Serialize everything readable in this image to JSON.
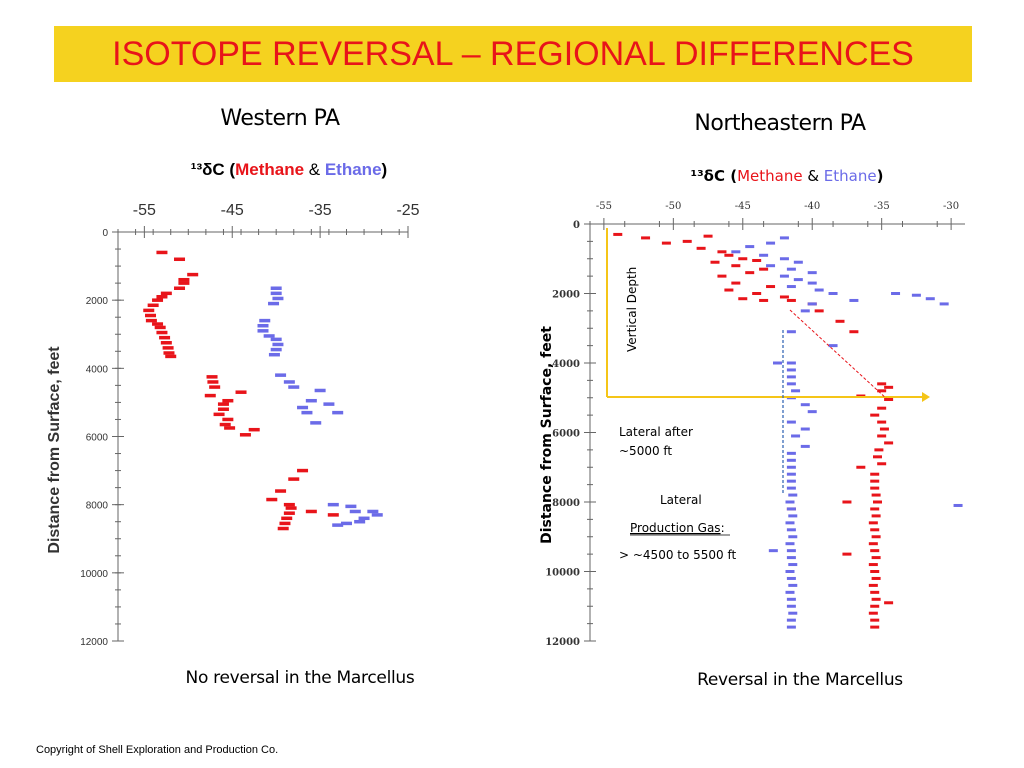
{
  "title": "ISOTOPE REVERSAL – REGIONAL DIFFERENCES",
  "copyright": "Copyright of Shell Exploration and Production Co.",
  "colors": {
    "methane": "#e8141a",
    "ethane": "#6b6be8",
    "title_bar": "#f5d21f",
    "ne_ethane_shallow": "#3c78c8"
  },
  "chart_data": [
    {
      "type": "scatter",
      "region": "Western PA",
      "subtitle": {
        "prefix": "¹³δC (",
        "methane": "Methane",
        "amp": " & ",
        "ethane": "Ethane",
        "suffix": ")"
      },
      "ylabel": "Distance from Surface, feet",
      "caption": "No reversal in the Marcellus",
      "xlim": [
        -58,
        -25
      ],
      "ylim": [
        0,
        12000
      ],
      "x_ticks": [
        "-55",
        "-45",
        "-35",
        "-25"
      ],
      "y_ticks": [
        "0",
        "2000",
        "4000",
        "6000",
        "8000",
        "10000",
        "12000"
      ],
      "series": [
        {
          "name": "Methane",
          "points": [
            [
              -53,
              600
            ],
            [
              -51,
              800
            ],
            [
              -49.5,
              1250
            ],
            [
              -50.5,
              1400
            ],
            [
              -50.5,
              1500
            ],
            [
              -51,
              1650
            ],
            [
              -52.5,
              1800
            ],
            [
              -53,
              1900
            ],
            [
              -53.5,
              2000
            ],
            [
              -54,
              2150
            ],
            [
              -54.5,
              2300
            ],
            [
              -54.3,
              2450
            ],
            [
              -54.2,
              2600
            ],
            [
              -53.5,
              2700
            ],
            [
              -53.2,
              2800
            ],
            [
              -53,
              2950
            ],
            [
              -52.7,
              3100
            ],
            [
              -52.5,
              3250
            ],
            [
              -52.3,
              3400
            ],
            [
              -52.2,
              3550
            ],
            [
              -52,
              3650
            ],
            [
              -47.3,
              4250
            ],
            [
              -47.2,
              4400
            ],
            [
              -47,
              4550
            ],
            [
              -44,
              4700
            ],
            [
              -47.5,
              4800
            ],
            [
              -45.5,
              4950
            ],
            [
              -46,
              5050
            ],
            [
              -46,
              5200
            ],
            [
              -46.5,
              5350
            ],
            [
              -45.5,
              5500
            ],
            [
              -45.8,
              5650
            ],
            [
              -45.3,
              5750
            ],
            [
              -42.5,
              5800
            ],
            [
              -43.5,
              5950
            ],
            [
              -37,
              7000
            ],
            [
              -38,
              7250
            ],
            [
              -39.5,
              7600
            ],
            [
              -40.5,
              7850
            ],
            [
              -38.5,
              8000
            ],
            [
              -38.3,
              8100
            ],
            [
              -38.5,
              8250
            ],
            [
              -38.8,
              8400
            ],
            [
              -39,
              8550
            ],
            [
              -39.2,
              8700
            ],
            [
              -36,
              8200
            ],
            [
              -33.5,
              8300
            ]
          ]
        },
        {
          "name": "Ethane",
          "points": [
            [
              -40,
              1650
            ],
            [
              -40,
              1800
            ],
            [
              -39.8,
              1950
            ],
            [
              -40.3,
              2100
            ],
            [
              -41.3,
              2600
            ],
            [
              -41.5,
              2750
            ],
            [
              -41.5,
              2900
            ],
            [
              -40.8,
              3050
            ],
            [
              -40,
              3150
            ],
            [
              -39.8,
              3300
            ],
            [
              -40,
              3450
            ],
            [
              -40.2,
              3600
            ],
            [
              -39.5,
              4200
            ],
            [
              -38.5,
              4400
            ],
            [
              -38,
              4550
            ],
            [
              -35,
              4650
            ],
            [
              -36,
              4950
            ],
            [
              -34,
              5050
            ],
            [
              -37,
              5150
            ],
            [
              -36.5,
              5300
            ],
            [
              -33,
              5300
            ],
            [
              -35.5,
              5600
            ],
            [
              -33.5,
              8000
            ],
            [
              -31.5,
              8050
            ],
            [
              -29,
              8200
            ],
            [
              -31,
              8200
            ],
            [
              -28.5,
              8300
            ],
            [
              -30,
              8400
            ],
            [
              -30.5,
              8500
            ],
            [
              -32,
              8550
            ],
            [
              -33,
              8600
            ]
          ]
        }
      ]
    },
    {
      "type": "scatter",
      "region": "Northeastern PA",
      "subtitle": {
        "prefix": "¹³δC (",
        "methane": "Methane",
        "amp": " & ",
        "ethane": "Ethane",
        "suffix": ")"
      },
      "ylabel": "Distance from Surface, feet",
      "caption": "Reversal in the Marcellus",
      "xlim": [
        -56,
        -29
      ],
      "ylim": [
        0,
        12000
      ],
      "x_ticks": [
        "-55",
        "-50",
        "-45",
        "-40",
        "-35",
        "-30"
      ],
      "y_ticks": [
        "0",
        "2000",
        "4000",
        "6000",
        "8000",
        "10000",
        "12000"
      ],
      "annotations": {
        "vertical_depth": "Vertical Depth",
        "lateral_after_line1": "Lateral after",
        "lateral_after_line2": "~5000 ft",
        "lateral_line1": "Lateral",
        "lateral_line2": "Production Gas",
        "lateral_colon": ":",
        "lateral_line3": "> ~4500 to  5500 ft"
      },
      "series": [
        {
          "name": "Methane",
          "points": [
            [
              -54,
              300
            ],
            [
              -52,
              400
            ],
            [
              -50.5,
              550
            ],
            [
              -49,
              500
            ],
            [
              -47.5,
              350
            ],
            [
              -48,
              700
            ],
            [
              -46.5,
              800
            ],
            [
              -46,
              900
            ],
            [
              -45,
              1000
            ],
            [
              -44,
              1050
            ],
            [
              -47,
              1100
            ],
            [
              -45.5,
              1200
            ],
            [
              -43.5,
              1300
            ],
            [
              -44.5,
              1400
            ],
            [
              -46.5,
              1500
            ],
            [
              -45.5,
              1700
            ],
            [
              -43,
              1800
            ],
            [
              -46,
              1900
            ],
            [
              -44,
              2000
            ],
            [
              -42,
              2100
            ],
            [
              -45,
              2150
            ],
            [
              -43.5,
              2200
            ],
            [
              -41.5,
              2200
            ],
            [
              -40,
              2300
            ],
            [
              -39.5,
              2500
            ],
            [
              -38,
              2800
            ],
            [
              -37,
              3100
            ],
            [
              -35,
              4600
            ],
            [
              -34.5,
              4700
            ],
            [
              -35,
              4800
            ],
            [
              -36.5,
              4950
            ],
            [
              -34.5,
              5050
            ],
            [
              -35,
              5300
            ],
            [
              -35.5,
              5500
            ],
            [
              -35,
              5700
            ],
            [
              -34.8,
              5900
            ],
            [
              -35,
              6100
            ],
            [
              -34.5,
              6300
            ],
            [
              -35.2,
              6500
            ],
            [
              -35.3,
              6700
            ],
            [
              -35,
              6900
            ],
            [
              -36.5,
              7000
            ],
            [
              -35.5,
              7200
            ],
            [
              -35.5,
              7400
            ],
            [
              -35.5,
              7600
            ],
            [
              -35.4,
              7800
            ],
            [
              -35.3,
              8000
            ],
            [
              -35.5,
              8200
            ],
            [
              -35.4,
              8400
            ],
            [
              -35.6,
              8600
            ],
            [
              -35.5,
              8800
            ],
            [
              -35.4,
              9000
            ],
            [
              -35.6,
              9200
            ],
            [
              -35.5,
              9400
            ],
            [
              -35.4,
              9600
            ],
            [
              -35.6,
              9800
            ],
            [
              -35.5,
              10000
            ],
            [
              -35.4,
              10200
            ],
            [
              -35.6,
              10400
            ],
            [
              -35.5,
              10600
            ],
            [
              -35.4,
              10800
            ],
            [
              -35.5,
              11000
            ],
            [
              -35.6,
              11200
            ],
            [
              -35.5,
              11400
            ],
            [
              -35.5,
              11600
            ],
            [
              -37.5,
              8000
            ],
            [
              -41.5,
              8200
            ],
            [
              -37.5,
              9500
            ],
            [
              -34.5,
              10900
            ]
          ]
        },
        {
          "name": "Ethane",
          "points": [
            [
              -42,
              400
            ],
            [
              -43,
              550
            ],
            [
              -44.5,
              650
            ],
            [
              -45.5,
              800
            ],
            [
              -43.5,
              900
            ],
            [
              -42,
              1000
            ],
            [
              -41,
              1100
            ],
            [
              -43,
              1200
            ],
            [
              -41.5,
              1300
            ],
            [
              -40,
              1400
            ],
            [
              -42,
              1500
            ],
            [
              -41,
              1600
            ],
            [
              -40,
              1700
            ],
            [
              -41.5,
              1800
            ],
            [
              -39.5,
              1900
            ],
            [
              -38.5,
              2000
            ],
            [
              -37,
              2200
            ],
            [
              -34,
              2000
            ],
            [
              -32.5,
              2050
            ],
            [
              -31.5,
              2150
            ],
            [
              -30.5,
              2300
            ],
            [
              -40,
              2300
            ],
            [
              -40.5,
              2500
            ],
            [
              -41.5,
              3100
            ],
            [
              -38.5,
              3500
            ],
            [
              -42.5,
              4000
            ],
            [
              -29.5,
              8100
            ]
          ]
        },
        {
          "name": "Ethane (lateral)",
          "points": [
            [
              -41.5,
              4000
            ],
            [
              -41.5,
              4200
            ],
            [
              -41.5,
              4400
            ],
            [
              -41.5,
              4600
            ],
            [
              -41.2,
              4800
            ],
            [
              -41.5,
              5000
            ],
            [
              -40.5,
              5200
            ],
            [
              -40,
              5400
            ],
            [
              -41.5,
              5700
            ],
            [
              -40.5,
              5900
            ],
            [
              -41.2,
              6100
            ],
            [
              -40.5,
              6400
            ],
            [
              -41.5,
              6600
            ],
            [
              -41.5,
              6800
            ],
            [
              -41.5,
              7000
            ],
            [
              -41.5,
              7200
            ],
            [
              -41.5,
              7400
            ],
            [
              -41.5,
              7600
            ],
            [
              -41.4,
              7800
            ],
            [
              -41.6,
              8000
            ],
            [
              -41.5,
              8200
            ],
            [
              -41.4,
              8400
            ],
            [
              -41.6,
              8600
            ],
            [
              -41.5,
              8800
            ],
            [
              -41.4,
              9000
            ],
            [
              -41.6,
              9200
            ],
            [
              -41.5,
              9400
            ],
            [
              -42.8,
              9400
            ],
            [
              -41.5,
              9600
            ],
            [
              -41.4,
              9800
            ],
            [
              -41.6,
              10000
            ],
            [
              -41.5,
              10200
            ],
            [
              -41.4,
              10400
            ],
            [
              -41.6,
              10600
            ],
            [
              -41.5,
              10800
            ],
            [
              -41.5,
              11000
            ],
            [
              -41.4,
              11200
            ],
            [
              -41.5,
              11400
            ],
            [
              -41.5,
              11600
            ]
          ]
        }
      ]
    }
  ]
}
